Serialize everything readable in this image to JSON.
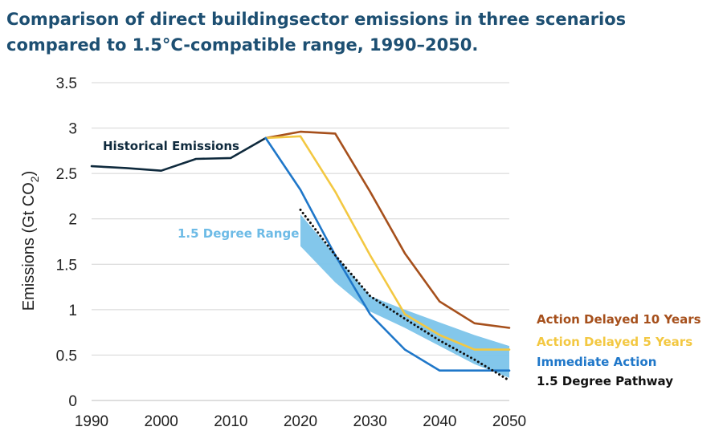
{
  "title": {
    "line1": "Comparison of direct buildingsector emissions in three scenarios",
    "line2": "compared to 1.5°C-compatible range, 1990–2050."
  },
  "chart_data": {
    "type": "line",
    "ylabel": "Emissions (Gt CO2)",
    "ylabel_main": "Emissions (Gt CO",
    "ylabel_sub": "2",
    "ylabel_close": ")",
    "xlim": [
      1990,
      2050
    ],
    "ylim": [
      0,
      3.5
    ],
    "x_ticks": [
      1990,
      2000,
      2010,
      2020,
      2030,
      2040,
      2050
    ],
    "y_ticks": [
      0,
      0.5,
      1,
      1.5,
      2,
      2.5,
      3,
      3.5
    ],
    "y_tick_labels": [
      "0",
      "0.5",
      "1",
      "1.5",
      "2",
      "2.5",
      "3",
      "3.5"
    ],
    "grid": true,
    "series": [
      {
        "name": "Historical Emissions",
        "color": "#0f2a3d",
        "style": "solid",
        "x": [
          1990,
          1995,
          2000,
          2005,
          2010,
          2015
        ],
        "y": [
          2.58,
          2.56,
          2.53,
          2.66,
          2.67,
          2.89
        ]
      },
      {
        "name": "Action Delayed 10 Years",
        "color": "#a6501c",
        "style": "solid",
        "x": [
          2015,
          2020,
          2025,
          2030,
          2035,
          2040,
          2045,
          2050
        ],
        "y": [
          2.89,
          2.96,
          2.94,
          2.3,
          1.62,
          1.09,
          0.85,
          0.8
        ]
      },
      {
        "name": "Action Delayed 5 Years",
        "color": "#f3c842",
        "style": "solid",
        "x": [
          2015,
          2020,
          2025,
          2030,
          2035,
          2040,
          2045,
          2050
        ],
        "y": [
          2.89,
          2.91,
          2.3,
          1.6,
          0.95,
          0.72,
          0.56,
          0.56
        ]
      },
      {
        "name": "Immediate Action",
        "color": "#1f77c9",
        "style": "solid",
        "x": [
          2015,
          2020,
          2025,
          2030,
          2035,
          2040,
          2045,
          2050
        ],
        "y": [
          2.89,
          2.32,
          1.6,
          0.95,
          0.56,
          0.33,
          0.33,
          0.33
        ]
      },
      {
        "name": "1.5 Degree Pathway",
        "color": "#111111",
        "style": "dotted",
        "x": [
          2020,
          2025,
          2030,
          2035,
          2040,
          2045,
          2050
        ],
        "y": [
          2.1,
          1.6,
          1.15,
          0.9,
          0.66,
          0.45,
          0.22
        ]
      }
    ],
    "range_band": {
      "name": "1.5 Degree Range",
      "color": "#7cc4ea",
      "x": [
        2020,
        2025,
        2030,
        2035,
        2040,
        2045,
        2050
      ],
      "upper": [
        2.05,
        1.6,
        1.15,
        1.0,
        0.86,
        0.72,
        0.6
      ],
      "lower": [
        1.7,
        1.3,
        0.98,
        0.8,
        0.6,
        0.4,
        0.25
      ]
    },
    "annotations": [
      {
        "text": "Historical Emissions",
        "color": "#0f2a3d"
      },
      {
        "text": "1.5 Degree Range",
        "color": "#6dbbe6"
      }
    ],
    "legend": {
      "placement": "right",
      "items": [
        {
          "text": "Action Delayed 10 Years",
          "color": "#a6501c"
        },
        {
          "text": "Action Delayed 5 Years",
          "color": "#f3c842"
        },
        {
          "text": "Immediate Action",
          "color": "#1f77c9"
        },
        {
          "text": "1.5 Degree Pathway",
          "color": "#111111"
        }
      ]
    }
  }
}
